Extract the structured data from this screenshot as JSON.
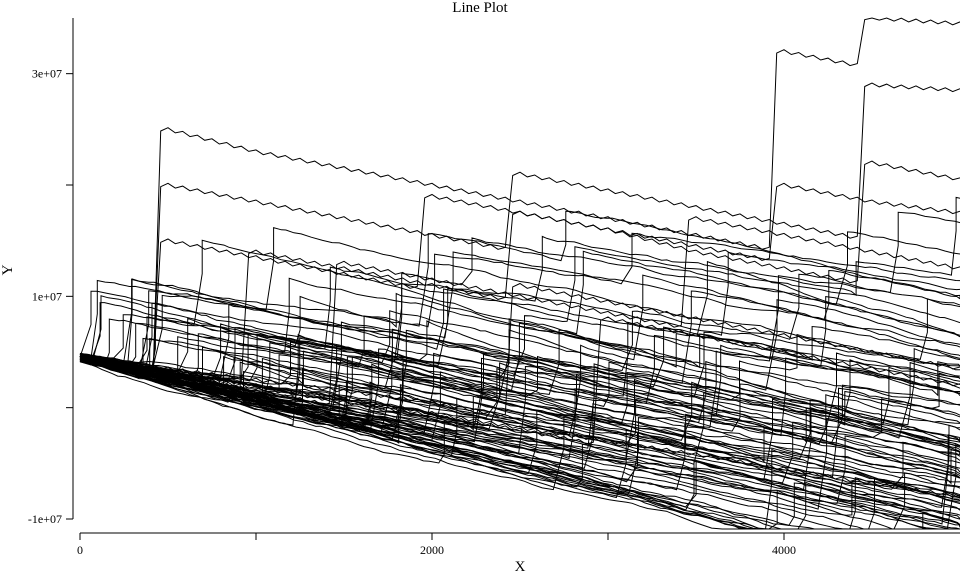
{
  "chart_data": {
    "type": "line",
    "title": "Line Plot",
    "xlabel": "X",
    "ylabel": "Y",
    "xlim": [
      0,
      5000
    ],
    "ylim": [
      -10000000,
      35000000
    ],
    "x_ticks": [
      0,
      1000,
      2000,
      3000,
      4000
    ],
    "x_tick_labels": [
      "0",
      "",
      "2000",
      "",
      "4000"
    ],
    "y_ticks": [
      -10000000,
      0,
      10000000,
      20000000,
      30000000
    ],
    "y_tick_labels": [
      "-1e+07",
      "",
      "1e+07",
      "",
      "3e+07"
    ],
    "grid": false,
    "legend": "none",
    "line_color": "#000000",
    "series_count": 100,
    "x": [
      0,
      500,
      1000,
      1500,
      2000,
      2500,
      3000,
      3500,
      4000,
      4500,
      5000
    ],
    "series": [
      {
        "values": [
          4500000,
          25000000,
          23000000,
          21500000,
          20000000,
          18500000,
          17000000,
          15500000,
          32000000,
          35000000,
          34500000
        ]
      },
      {
        "values": [
          4500000,
          20000000,
          18500000,
          17000000,
          15500000,
          21000000,
          19500000,
          18000000,
          16500000,
          29000000,
          28500000
        ]
      },
      {
        "values": [
          4500000,
          15000000,
          13500000,
          12000000,
          19000000,
          17500000,
          16000000,
          14500000,
          20000000,
          18500000,
          17500000
        ]
      },
      {
        "values": [
          4500000,
          3500000,
          14000000,
          12500000,
          11000000,
          17500000,
          16000000,
          14000000,
          12500000,
          22000000,
          20500000
        ]
      },
      {
        "values": [
          4500000,
          3000000,
          1500000,
          13000000,
          11500000,
          10000000,
          8500000,
          17000000,
          15500000,
          14000000,
          12500000
        ]
      },
      {
        "values": [
          4500000,
          3200000,
          2000000,
          800000,
          -500000,
          -1800000,
          -3000000,
          -4200000,
          -5500000,
          -6800000,
          -8000000
        ]
      },
      {
        "values": [
          4500000,
          3500000,
          2500000,
          1500000,
          500000,
          11000000,
          9500000,
          8000000,
          6500000,
          5000000,
          3500000
        ]
      },
      {
        "values": [
          4500000,
          3000000,
          1800000,
          500000,
          -700000,
          -2000000,
          8000000,
          6500000,
          5000000,
          3500000,
          2000000
        ]
      }
    ]
  }
}
